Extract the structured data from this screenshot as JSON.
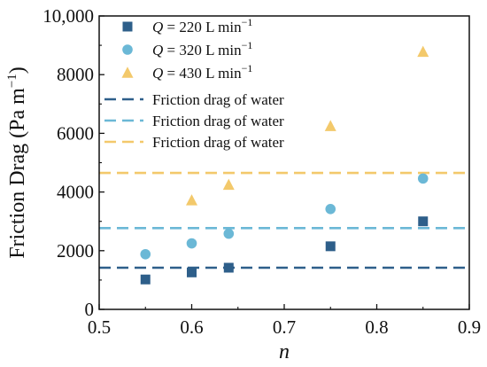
{
  "chart_data": {
    "type": "scatter",
    "title": "",
    "xlabel": "n",
    "ylabel": "Friction Drag (Pa m",
    "ylabel_sup": "−1",
    "ylabel_close": ")",
    "xlim": [
      0.5,
      0.9
    ],
    "ylim": [
      0,
      10000
    ],
    "x_ticks": [
      0.5,
      0.6,
      0.7,
      0.8,
      0.9
    ],
    "x_tick_labels": [
      "0.5",
      "0.6",
      "0.7",
      "0.8",
      "0.9"
    ],
    "y_ticks": [
      0,
      2000,
      4000,
      6000,
      8000,
      10000
    ],
    "y_tick_labels": [
      "0",
      "2000",
      "4000",
      "6000",
      "8000",
      "10,000"
    ],
    "grid": false,
    "legend_position": "top-left",
    "series": [
      {
        "name": "Q = 220 L min−1",
        "label_q": "Q",
        "label_mid": " = 220 L min",
        "label_sup": "−1",
        "marker": "square",
        "color": "#2e5f8a",
        "x": [
          0.55,
          0.6,
          0.64,
          0.75,
          0.85
        ],
        "y": [
          1020,
          1260,
          1420,
          2150,
          3000
        ]
      },
      {
        "name": "Q = 320 L min−1",
        "label_q": "Q",
        "label_mid": " = 320 L min",
        "label_sup": "−1",
        "marker": "circle",
        "color": "#6bb8d6",
        "x": [
          0.55,
          0.6,
          0.64,
          0.75,
          0.85
        ],
        "y": [
          1880,
          2250,
          2580,
          3420,
          4460
        ]
      },
      {
        "name": "Q = 430 L min−1",
        "label_q": "Q",
        "label_mid": " = 430 L min",
        "label_sup": "−1",
        "marker": "triangle",
        "color": "#f3c96b",
        "x": [
          0.6,
          0.64,
          0.75,
          0.85
        ],
        "y": [
          3720,
          4250,
          6250,
          8780
        ]
      }
    ],
    "reference_lines": [
      {
        "name": "Friction drag of water",
        "y": 1420,
        "color": "#2e5f8a"
      },
      {
        "name": "Friction drag of water",
        "y": 2770,
        "color": "#6bb8d6"
      },
      {
        "name": "Friction drag of water",
        "y": 4650,
        "color": "#f3c96b"
      }
    ]
  }
}
